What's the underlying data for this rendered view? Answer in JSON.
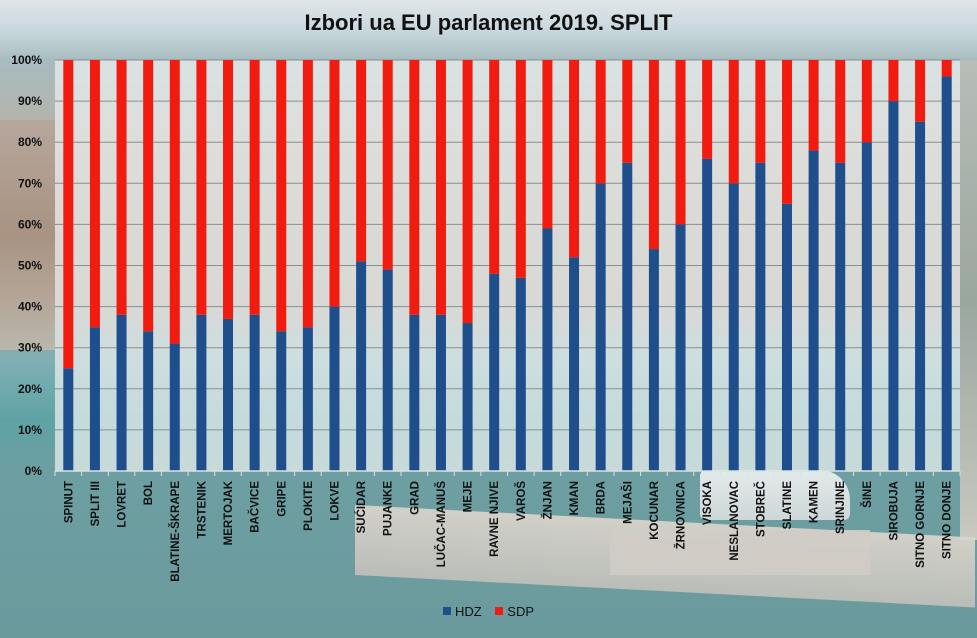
{
  "chart_data": {
    "type": "bar",
    "stacked": true,
    "percent_stacked": true,
    "title": "Izbori ua EU parlament 2019.  SPLIT",
    "xlabel": "",
    "ylabel": "",
    "ylim": [
      0,
      100
    ],
    "y_ticks": [
      "0%",
      "10%",
      "20%",
      "30%",
      "40%",
      "50%",
      "60%",
      "70%",
      "80%",
      "90%",
      "100%"
    ],
    "grid": true,
    "legend_position": "bottom",
    "categories": [
      "SPINUT",
      "SPLIT III",
      "LOVRET",
      "BOL",
      "BLATINE-ŠKRAPE",
      "TRSTENIK",
      "MERTOJAK",
      "BAČVICE",
      "GRIPE",
      "PLOKITE",
      "LOKVE",
      "SUĆIDAR",
      "PUJANKE",
      "GRAD",
      "LUČAC-MANUŠ",
      "MEJE",
      "RAVNE NJIVE",
      "VAROŠ",
      "ŽNJAN",
      "KMAN",
      "BRDA",
      "MEJAŠI",
      "KOCUNAR",
      "ŽRNOVNICA",
      "VISOKA",
      "NESLANOVAC",
      "STOBREČ",
      "SLATINE",
      "KAMEN",
      "SRINJINE",
      "ŠINE",
      "SIROBUJA",
      "SITNO GORNJE",
      "SITNO DONJE"
    ],
    "series": [
      {
        "name": "HDZ",
        "color": "#1f4e8c",
        "values": [
          25,
          35,
          38,
          34,
          31,
          38,
          37,
          38,
          34,
          35,
          40,
          51,
          49,
          38,
          38,
          36,
          48,
          47,
          59,
          52,
          70,
          75,
          54,
          60,
          76,
          70,
          75,
          65,
          78,
          75,
          80,
          90,
          85,
          96
        ]
      },
      {
        "name": "SDP",
        "color": "#f21b0f",
        "values": [
          75,
          65,
          62,
          66,
          69,
          62,
          63,
          62,
          66,
          65,
          60,
          49,
          51,
          62,
          62,
          64,
          52,
          53,
          41,
          48,
          30,
          25,
          46,
          40,
          24,
          30,
          25,
          35,
          22,
          25,
          20,
          10,
          15,
          4
        ]
      }
    ]
  }
}
